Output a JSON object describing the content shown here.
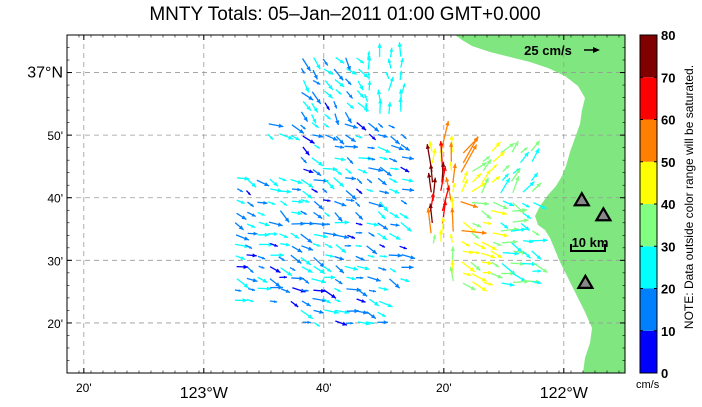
{
  "title": "MNTY Totals: 05–Jan–2011 01:00 GMT+0.000",
  "map": {
    "lat_range": [
      36.2,
      37.1
    ],
    "lon_range": [
      -123.38,
      -121.83
    ],
    "lat_ticks": [
      {
        "lat": 37.0,
        "label": "37°N",
        "major": true
      },
      {
        "lat": 36.8333,
        "label": "50'",
        "major": false
      },
      {
        "lat": 36.6667,
        "label": "40'",
        "major": false
      },
      {
        "lat": 36.5,
        "label": "30'",
        "major": false
      },
      {
        "lat": 36.3333,
        "label": "20'",
        "major": false
      }
    ],
    "lon_ticks": [
      {
        "lon": -123.3333,
        "label": "20'",
        "major": false
      },
      {
        "lon": -123.0,
        "label": "123°W",
        "major": true
      },
      {
        "lon": -122.6667,
        "label": "40'",
        "major": false
      },
      {
        "lon": -122.3333,
        "label": "20'",
        "major": false
      },
      {
        "lon": -122.0,
        "label": "122°W",
        "major": true
      }
    ],
    "land_color": "#80e680",
    "scale_vector_label": "25 cm/s",
    "distance_scale_label": "10 km",
    "stations": [
      {
        "lat": 36.66,
        "lon": -121.95
      },
      {
        "lat": 36.62,
        "lon": -121.89
      },
      {
        "lat": 36.44,
        "lon": -121.94
      }
    ]
  },
  "colorbar": {
    "ticks": [
      "0",
      "10",
      "20",
      "30",
      "40",
      "50",
      "60",
      "70",
      "80"
    ],
    "colors": [
      "#0000ff",
      "#0080ff",
      "#00ffff",
      "#80ff80",
      "#ffff00",
      "#ff8000",
      "#ff0000",
      "#800000"
    ],
    "unit": "cm/s",
    "note": "NOTE: Data outside color range will be saturated."
  }
}
